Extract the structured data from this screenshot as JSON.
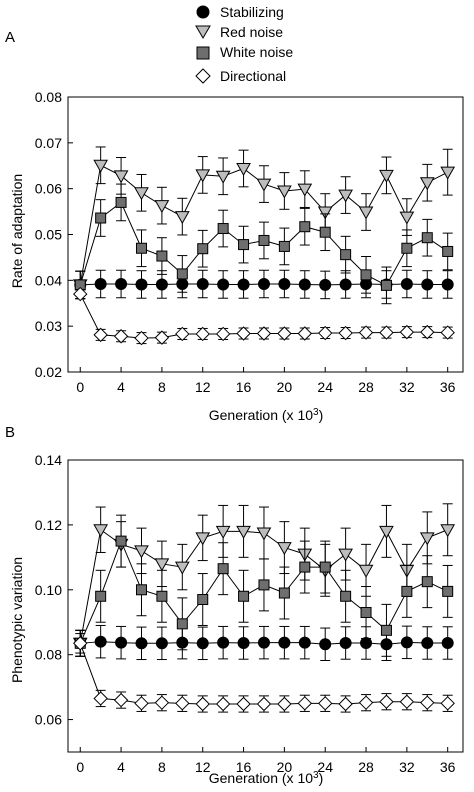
{
  "legend": {
    "placement": "top",
    "entries": [
      {
        "label": "Stabilizing",
        "marker": "circle",
        "fill": "#000000"
      },
      {
        "label": "Red noise",
        "marker": "triangle-down",
        "fill": "#bdbdbd"
      },
      {
        "label": "White noise",
        "marker": "square",
        "fill": "#6e6e6e"
      },
      {
        "label": "Directional",
        "marker": "diamond",
        "fill": "#ffffff"
      }
    ]
  },
  "chart_data": [
    {
      "type": "line",
      "panel_label": "A",
      "xlabel_main": "Generation (x 10",
      "xlabel_sup": "3",
      "xlabel_end": ")",
      "ylabel": "Rate of adaptation",
      "xlim": [
        -1.2,
        37.5
      ],
      "ylim": [
        0.02,
        0.08
      ],
      "x_ticks": [
        0,
        4,
        8,
        12,
        16,
        20,
        24,
        28,
        32,
        36
      ],
      "x_tick_labels": [
        "0",
        "4",
        "8",
        "12",
        "16",
        "20",
        "24",
        "28",
        "32",
        "36"
      ],
      "y_ticks": [
        0.02,
        0.03,
        0.04,
        0.05,
        0.06,
        0.07,
        0.08
      ],
      "y_tick_labels": [
        "0.02",
        "0.03",
        "0.04",
        "0.05",
        "0.06",
        "0.07",
        "0.08"
      ],
      "grid": false,
      "series": [
        {
          "name": "Stabilizing",
          "marker": "circle",
          "fill": "#000000",
          "x": [
            0,
            2,
            4,
            6,
            8,
            10,
            12,
            14,
            16,
            18,
            20,
            22,
            24,
            26,
            28,
            30,
            32,
            34,
            36
          ],
          "y": [
            0.039,
            0.0392,
            0.0392,
            0.0391,
            0.0391,
            0.0392,
            0.0392,
            0.0391,
            0.0391,
            0.0392,
            0.0392,
            0.0391,
            0.039,
            0.0391,
            0.0392,
            0.0391,
            0.0392,
            0.0391,
            0.0391
          ],
          "err": [
            0.003,
            0.003,
            0.003,
            0.003,
            0.003,
            0.003,
            0.003,
            0.003,
            0.003,
            0.003,
            0.003,
            0.003,
            0.003,
            0.003,
            0.003,
            0.003,
            0.003,
            0.003,
            0.003
          ]
        },
        {
          "name": "Red noise",
          "marker": "triangle-down",
          "fill": "#bdbdbd",
          "x": [
            0,
            2,
            4,
            6,
            8,
            10,
            12,
            14,
            16,
            18,
            20,
            22,
            24,
            26,
            28,
            30,
            32,
            34,
            36
          ],
          "y": [
            0.039,
            0.0651,
            0.0628,
            0.0591,
            0.0563,
            0.0539,
            0.063,
            0.0627,
            0.0644,
            0.061,
            0.0595,
            0.0599,
            0.0549,
            0.0586,
            0.0549,
            0.0629,
            0.0538,
            0.0613,
            0.0636
          ],
          "err": [
            0.003,
            0.004,
            0.004,
            0.004,
            0.004,
            0.004,
            0.004,
            0.004,
            0.004,
            0.004,
            0.004,
            0.004,
            0.004,
            0.004,
            0.004,
            0.004,
            0.004,
            0.004,
            0.005
          ]
        },
        {
          "name": "White noise",
          "marker": "square",
          "fill": "#6e6e6e",
          "x": [
            0,
            2,
            4,
            6,
            8,
            10,
            12,
            14,
            16,
            18,
            20,
            22,
            24,
            26,
            28,
            30,
            32,
            34,
            36
          ],
          "y": [
            0.039,
            0.0536,
            0.057,
            0.047,
            0.0453,
            0.0414,
            0.0469,
            0.0513,
            0.0478,
            0.0487,
            0.0474,
            0.0517,
            0.0505,
            0.0456,
            0.0412,
            0.0389,
            0.047,
            0.0493,
            0.0463
          ],
          "err": [
            0.003,
            0.004,
            0.004,
            0.004,
            0.004,
            0.004,
            0.004,
            0.004,
            0.004,
            0.004,
            0.004,
            0.004,
            0.004,
            0.004,
            0.004,
            0.004,
            0.004,
            0.004,
            0.004
          ]
        },
        {
          "name": "Directional",
          "marker": "diamond",
          "fill": "#ffffff",
          "x": [
            0,
            2,
            4,
            6,
            8,
            10,
            12,
            14,
            16,
            18,
            20,
            22,
            24,
            26,
            28,
            30,
            32,
            34,
            36
          ],
          "y": [
            0.037,
            0.0281,
            0.0278,
            0.0274,
            0.0275,
            0.0283,
            0.0283,
            0.0283,
            0.0284,
            0.0284,
            0.0284,
            0.0284,
            0.0285,
            0.0285,
            0.0286,
            0.0286,
            0.0287,
            0.0287,
            0.0286
          ],
          "err": [
            0.001,
            0.0012,
            0.0012,
            0.0012,
            0.0012,
            0.0012,
            0.0012,
            0.0012,
            0.0012,
            0.0012,
            0.0012,
            0.0012,
            0.0012,
            0.0012,
            0.0012,
            0.0012,
            0.0012,
            0.0012,
            0.0012
          ]
        }
      ]
    },
    {
      "type": "line",
      "panel_label": "B",
      "xlabel_main": "Generation (x 10",
      "xlabel_sup": "3",
      "xlabel_end": ")",
      "ylabel": "Phenotypic variation",
      "xlim": [
        -1.2,
        37.5
      ],
      "ylim": [
        0.05,
        0.14
      ],
      "x_ticks": [
        0,
        4,
        8,
        12,
        16,
        20,
        24,
        28,
        32,
        36
      ],
      "x_tick_labels": [
        "0",
        "4",
        "8",
        "12",
        "16",
        "20",
        "24",
        "28",
        "32",
        "36"
      ],
      "y_ticks": [
        0.06,
        0.08,
        0.1,
        0.12,
        0.14
      ],
      "y_tick_labels": [
        "0.06",
        "0.08",
        "0.10",
        "0.12",
        "0.14"
      ],
      "grid": false,
      "series": [
        {
          "name": "Stabilizing",
          "marker": "circle",
          "fill": "#000000",
          "x": [
            0,
            2,
            4,
            6,
            8,
            10,
            12,
            14,
            16,
            18,
            20,
            22,
            24,
            26,
            28,
            30,
            32,
            34,
            36
          ],
          "y": [
            0.0835,
            0.084,
            0.0837,
            0.0835,
            0.0835,
            0.0837,
            0.0835,
            0.0837,
            0.0836,
            0.0837,
            0.0837,
            0.0837,
            0.0832,
            0.0836,
            0.0836,
            0.0832,
            0.0838,
            0.0836,
            0.0836
          ],
          "err": [
            0.004,
            0.005,
            0.005,
            0.005,
            0.005,
            0.005,
            0.005,
            0.005,
            0.005,
            0.005,
            0.005,
            0.005,
            0.005,
            0.005,
            0.005,
            0.005,
            0.005,
            0.005,
            0.005
          ]
        },
        {
          "name": "Red noise",
          "marker": "triangle-down",
          "fill": "#bdbdbd",
          "x": [
            0,
            2,
            4,
            6,
            8,
            10,
            12,
            14,
            16,
            18,
            20,
            22,
            24,
            26,
            28,
            30,
            32,
            34,
            36
          ],
          "y": [
            0.0835,
            0.1185,
            0.114,
            0.112,
            0.108,
            0.107,
            0.116,
            0.118,
            0.118,
            0.1175,
            0.113,
            0.111,
            0.106,
            0.111,
            0.106,
            0.118,
            0.106,
            0.116,
            0.1185
          ],
          "err": [
            0.004,
            0.007,
            0.007,
            0.007,
            0.007,
            0.007,
            0.007,
            0.008,
            0.008,
            0.008,
            0.008,
            0.008,
            0.008,
            0.008,
            0.008,
            0.008,
            0.008,
            0.008,
            0.008
          ]
        },
        {
          "name": "White noise",
          "marker": "square",
          "fill": "#6e6e6e",
          "x": [
            0,
            2,
            4,
            6,
            8,
            10,
            12,
            14,
            16,
            18,
            20,
            22,
            24,
            26,
            28,
            30,
            32,
            34,
            36
          ],
          "y": [
            0.0835,
            0.098,
            0.115,
            0.1,
            0.098,
            0.0895,
            0.097,
            0.1065,
            0.098,
            0.1015,
            0.099,
            0.107,
            0.107,
            0.098,
            0.093,
            0.0875,
            0.0995,
            0.1025,
            0.0995
          ],
          "err": [
            0.004,
            0.008,
            0.008,
            0.008,
            0.008,
            0.008,
            0.008,
            0.008,
            0.008,
            0.008,
            0.008,
            0.008,
            0.008,
            0.008,
            0.008,
            0.008,
            0.008,
            0.008,
            0.008
          ]
        },
        {
          "name": "Directional",
          "marker": "diamond",
          "fill": "#ffffff",
          "x": [
            0,
            2,
            4,
            6,
            8,
            10,
            12,
            14,
            16,
            18,
            20,
            22,
            24,
            26,
            28,
            30,
            32,
            34,
            36
          ],
          "y": [
            0.0835,
            0.0665,
            0.066,
            0.065,
            0.0652,
            0.065,
            0.0648,
            0.0648,
            0.0648,
            0.0648,
            0.0648,
            0.065,
            0.065,
            0.0648,
            0.0652,
            0.0655,
            0.0655,
            0.0652,
            0.065
          ],
          "err": [
            0.003,
            0.0025,
            0.0025,
            0.0025,
            0.0025,
            0.0025,
            0.0025,
            0.0025,
            0.0025,
            0.0025,
            0.0025,
            0.0025,
            0.0025,
            0.0025,
            0.0025,
            0.0025,
            0.0025,
            0.0025,
            0.0025
          ]
        }
      ]
    }
  ]
}
